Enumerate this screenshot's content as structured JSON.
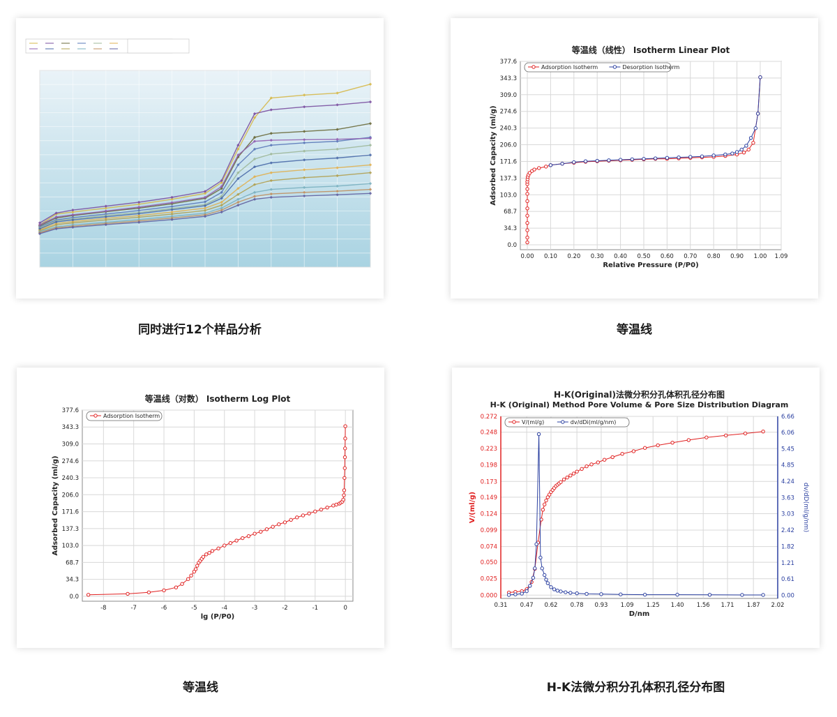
{
  "captions": {
    "panel1": "同时进行12个样品分析",
    "panel2": "等温线",
    "panel3": "等温线",
    "panel4": "H-K法微分积分孔体积孔径分布图"
  },
  "colors": {
    "adsorption": "#e02020",
    "desorption": "#2a3fa0",
    "grid": "#d8d8d8",
    "axis_right": "#2a3fa0",
    "multi_bg_top": "#eaf3f8",
    "multi_bg_bottom": "#a9d3e2"
  },
  "chart_data": [
    {
      "id": "multi",
      "type": "line",
      "title": "",
      "series_colors": [
        "#d6b84a",
        "#7a4fa0",
        "#6a6a3a",
        "#5a78b8",
        "#9fb89a",
        "#e0b050",
        "#8f5fb0",
        "#4a6aa8",
        "#b0a050",
        "#7ab0c0",
        "#c09060",
        "#6060a0"
      ],
      "x": [
        0,
        0.05,
        0.1,
        0.2,
        0.3,
        0.4,
        0.5,
        0.55,
        0.6,
        0.65,
        0.7,
        0.8,
        0.9,
        1.0
      ],
      "series": [
        {
          "values": [
            215,
            270,
            280,
            300,
            320,
            345,
            375,
            430,
            600,
            760,
            860,
            875,
            885,
            930
          ]
        },
        {
          "values": [
            225,
            275,
            290,
            310,
            330,
            355,
            385,
            440,
            620,
            780,
            800,
            815,
            825,
            840
          ]
        },
        {
          "values": [
            210,
            250,
            262,
            282,
            300,
            322,
            350,
            400,
            560,
            660,
            680,
            690,
            700,
            730
          ]
        },
        {
          "values": [
            205,
            240,
            252,
            270,
            288,
            308,
            332,
            380,
            520,
            600,
            620,
            632,
            640,
            660
          ]
        },
        {
          "values": [
            200,
            235,
            245,
            262,
            278,
            298,
            318,
            360,
            480,
            550,
            575,
            590,
            600,
            620
          ]
        },
        {
          "values": [
            190,
            222,
            232,
            248,
            262,
            280,
            300,
            330,
            400,
            460,
            480,
            495,
            505,
            520
          ]
        },
        {
          "values": [
            215,
            255,
            266,
            285,
            305,
            328,
            355,
            410,
            570,
            640,
            645,
            648,
            650,
            655
          ]
        },
        {
          "values": [
            195,
            230,
            240,
            256,
            272,
            292,
            312,
            350,
            450,
            510,
            530,
            545,
            555,
            570
          ]
        },
        {
          "values": [
            185,
            215,
            225,
            240,
            254,
            270,
            288,
            315,
            370,
            420,
            440,
            455,
            465,
            480
          ]
        },
        {
          "values": [
            180,
            205,
            215,
            228,
            242,
            258,
            274,
            300,
            345,
            380,
            395,
            405,
            412,
            425
          ]
        },
        {
          "values": [
            175,
            200,
            208,
            222,
            235,
            250,
            266,
            290,
            330,
            360,
            372,
            380,
            386,
            395
          ]
        },
        {
          "values": [
            170,
            195,
            203,
            216,
            228,
            242,
            258,
            280,
            315,
            345,
            355,
            362,
            368,
            375
          ]
        }
      ],
      "xlim": [
        0,
        1.0
      ],
      "ylim": [
        0,
        1000
      ]
    },
    {
      "id": "linear",
      "type": "line",
      "title": "等温线（线性）  Isotherm Linear Plot",
      "xlabel": "Relative Pressure (P/P0)",
      "ylabel": "Adsorbed Capacity (ml/g)",
      "xlim": [
        -0.03,
        1.09
      ],
      "ylim": [
        -10,
        377.6
      ],
      "x_ticks": [
        "0.00",
        "0.10",
        "0.20",
        "0.30",
        "0.40",
        "0.50",
        "0.60",
        "0.70",
        "0.80",
        "0.90",
        "1.00",
        "1.09"
      ],
      "y_ticks": [
        "377.6",
        "343.3",
        "309.0",
        "274.6",
        "240.3",
        "206.0",
        "171.6",
        "137.3",
        "103.0",
        "68.7",
        "34.3",
        "0.0"
      ],
      "legend_position": "top-left",
      "series": [
        {
          "name": "Adsorption Isotherm",
          "x": [
            0.0,
            0.0,
            0.0,
            0.0,
            0.0,
            0.0,
            0.0,
            0.0,
            0.0,
            0.0,
            0.0,
            0.001,
            0.002,
            0.005,
            0.01,
            0.02,
            0.03,
            0.05,
            0.08,
            0.1,
            0.15,
            0.2,
            0.25,
            0.3,
            0.35,
            0.4,
            0.45,
            0.5,
            0.55,
            0.6,
            0.65,
            0.7,
            0.75,
            0.8,
            0.85,
            0.9,
            0.93,
            0.95,
            0.97,
            0.99,
            1.0
          ],
          "y": [
            5,
            15,
            30,
            45,
            60,
            75,
            90,
            105,
            115,
            125,
            130,
            135,
            140,
            144,
            148,
            152,
            155,
            158,
            161,
            164,
            167,
            169,
            171,
            172,
            173,
            174,
            175,
            176,
            177,
            177,
            178,
            179,
            180,
            181,
            183,
            186,
            190,
            196,
            210,
            270,
            345
          ]
        },
        {
          "name": "Desorption Isotherm",
          "x": [
            0.1,
            0.15,
            0.2,
            0.25,
            0.3,
            0.35,
            0.4,
            0.45,
            0.5,
            0.55,
            0.6,
            0.65,
            0.7,
            0.75,
            0.8,
            0.85,
            0.88,
            0.9,
            0.92,
            0.94,
            0.96,
            0.98,
            0.99,
            1.0
          ],
          "y": [
            164,
            167,
            170,
            172,
            173,
            174,
            175,
            176,
            177,
            178,
            179,
            180,
            181,
            182,
            184,
            186,
            188,
            191,
            196,
            204,
            220,
            240,
            270,
            345
          ]
        }
      ]
    },
    {
      "id": "log",
      "type": "line",
      "title": "等温线（对数）  Isotherm Log Plot",
      "xlabel": "lg (P/P0)",
      "ylabel": "Adsorbed Capacity (ml/g)",
      "xlim": [
        -8.7,
        0.25
      ],
      "ylim": [
        -10,
        377.6
      ],
      "x_ticks": [
        "-8",
        "-7",
        "-6",
        "-5",
        "-4",
        "-3",
        "-2",
        "-1",
        "0"
      ],
      "y_ticks": [
        "377.6",
        "343.3",
        "309.0",
        "274.6",
        "240.3",
        "206.0",
        "171.6",
        "137.3",
        "103.0",
        "68.7",
        "34.3",
        "0.0"
      ],
      "legend_position": "top-left",
      "series": [
        {
          "name": "Adsorption Isotherm",
          "x": [
            -8.5,
            -7.2,
            -6.5,
            -6.0,
            -5.6,
            -5.4,
            -5.2,
            -5.1,
            -5.0,
            -4.95,
            -4.9,
            -4.85,
            -4.8,
            -4.75,
            -4.7,
            -4.6,
            -4.5,
            -4.4,
            -4.2,
            -4.0,
            -3.8,
            -3.6,
            -3.4,
            -3.2,
            -3.0,
            -2.8,
            -2.6,
            -2.4,
            -2.2,
            -2.0,
            -1.8,
            -1.6,
            -1.4,
            -1.2,
            -1.0,
            -0.8,
            -0.6,
            -0.4,
            -0.3,
            -0.2,
            -0.15,
            -0.1,
            -0.07,
            -0.05,
            -0.04,
            -0.03,
            -0.02,
            -0.015,
            -0.01,
            -0.005,
            -0.002
          ],
          "y": [
            3,
            5,
            8,
            12,
            18,
            25,
            35,
            42,
            50,
            55,
            62,
            68,
            72,
            76,
            80,
            85,
            88,
            92,
            97,
            103,
            108,
            113,
            118,
            122,
            127,
            131,
            136,
            141,
            146,
            150,
            155,
            160,
            164,
            168,
            172,
            176,
            180,
            184,
            186,
            188,
            190,
            192,
            196,
            205,
            215,
            240,
            260,
            282,
            300,
            320,
            345
          ]
        }
      ]
    },
    {
      "id": "hk",
      "type": "line",
      "title": "H-K(Original)法微分积分孔体积孔径分布图",
      "subtitle": "H-K (Original) Method Pore Volume & Pore Size Distribution Diagram",
      "xlabel": "D/nm",
      "ylabel": "V/(ml/g)",
      "ylabel_right": "dv/dD(ml/g/nm)",
      "xlim": [
        0.31,
        2.02
      ],
      "ylim": [
        -0.005,
        0.272
      ],
      "ylim_right": [
        -0.12,
        6.66
      ],
      "x_ticks": [
        "0.31",
        "0.47",
        "0.62",
        "0.78",
        "0.93",
        "1.09",
        "1.25",
        "1.40",
        "1.56",
        "1.71",
        "1.87",
        "2.02"
      ],
      "y_ticks": [
        "0.272",
        "0.248",
        "0.223",
        "0.198",
        "0.173",
        "0.149",
        "0.124",
        "0.099",
        "0.074",
        "0.050",
        "0.025",
        "0.000"
      ],
      "y_ticks_right": [
        "6.66",
        "6.06",
        "5.45",
        "4.85",
        "4.24",
        "3.63",
        "3.03",
        "2.42",
        "1.82",
        "1.21",
        "0.61",
        "0.00"
      ],
      "legend_position": "top-left",
      "series": [
        {
          "name": "V/(ml/g)",
          "axis": "left",
          "x": [
            0.36,
            0.4,
            0.44,
            0.47,
            0.5,
            0.52,
            0.54,
            0.56,
            0.57,
            0.58,
            0.59,
            0.6,
            0.61,
            0.62,
            0.63,
            0.64,
            0.65,
            0.66,
            0.67,
            0.68,
            0.7,
            0.72,
            0.74,
            0.76,
            0.78,
            0.81,
            0.84,
            0.87,
            0.91,
            0.95,
            1.0,
            1.06,
            1.13,
            1.2,
            1.28,
            1.37,
            1.47,
            1.58,
            1.7,
            1.82,
            1.93
          ],
          "y": [
            0.004,
            0.005,
            0.006,
            0.009,
            0.02,
            0.04,
            0.08,
            0.115,
            0.13,
            0.138,
            0.144,
            0.149,
            0.153,
            0.157,
            0.16,
            0.163,
            0.166,
            0.168,
            0.17,
            0.172,
            0.176,
            0.179,
            0.182,
            0.185,
            0.188,
            0.192,
            0.196,
            0.199,
            0.202,
            0.206,
            0.21,
            0.215,
            0.219,
            0.224,
            0.228,
            0.232,
            0.236,
            0.24,
            0.243,
            0.246,
            0.249
          ]
        },
        {
          "name": "dv/dDi(ml/g/nm)",
          "axis": "right",
          "x": [
            0.36,
            0.4,
            0.44,
            0.47,
            0.49,
            0.51,
            0.52,
            0.53,
            0.545,
            0.555,
            0.565,
            0.58,
            0.59,
            0.6,
            0.62,
            0.64,
            0.66,
            0.68,
            0.71,
            0.74,
            0.78,
            0.84,
            0.93,
            1.05,
            1.2,
            1.4,
            1.6,
            1.8,
            1.93
          ],
          "y": [
            0.01,
            0.03,
            0.06,
            0.15,
            0.35,
            0.65,
            1.0,
            1.9,
            6.0,
            1.4,
            1.0,
            0.75,
            0.58,
            0.45,
            0.3,
            0.22,
            0.17,
            0.14,
            0.11,
            0.09,
            0.07,
            0.05,
            0.04,
            0.03,
            0.02,
            0.02,
            0.015,
            0.01,
            0.01
          ]
        }
      ]
    }
  ]
}
